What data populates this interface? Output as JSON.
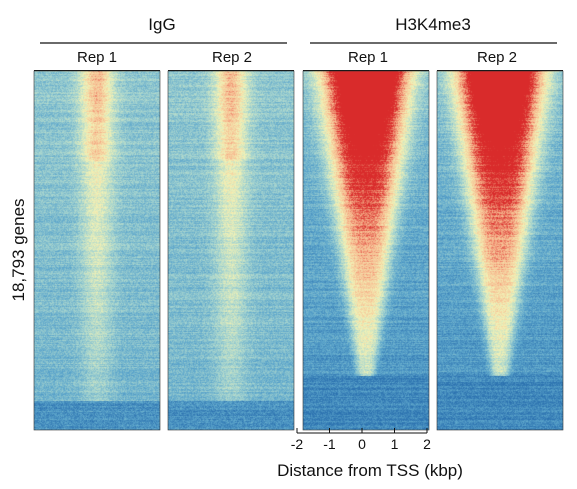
{
  "chart_data": {
    "type": "heatmap",
    "ylabel": "18,793 genes",
    "xlabel": "Distance from TSS (kbp)",
    "x_ticks": [
      "-2",
      "-1",
      "0",
      "1",
      "2"
    ],
    "x_range_kbp": [
      -2,
      2
    ],
    "rows": 18793,
    "row_order": "descending H3K4me3 signal",
    "colormap": [
      "#2c72b0",
      "#5ea7cc",
      "#a7d5cf",
      "#f2f2b6",
      "#f7b98f",
      "#d92b2b"
    ],
    "groups": [
      {
        "name": "IgG",
        "replicates": [
          {
            "label": "Rep 1",
            "signal": "weak, near background",
            "center_width_kbp": 0.35
          },
          {
            "label": "Rep 2",
            "signal": "weak, near background",
            "center_width_kbp": 0.35
          }
        ]
      },
      {
        "name": "H3K4me3",
        "replicates": [
          {
            "label": "Rep 1",
            "signal": "strong enrichment centered on TSS, decreasing down rows",
            "max_half_width_kbp": 1.5
          },
          {
            "label": "Rep 2",
            "signal": "strong enrichment centered on TSS, decreasing down rows",
            "max_half_width_kbp": 1.5
          }
        ]
      }
    ],
    "grid": false,
    "legend": "none"
  }
}
